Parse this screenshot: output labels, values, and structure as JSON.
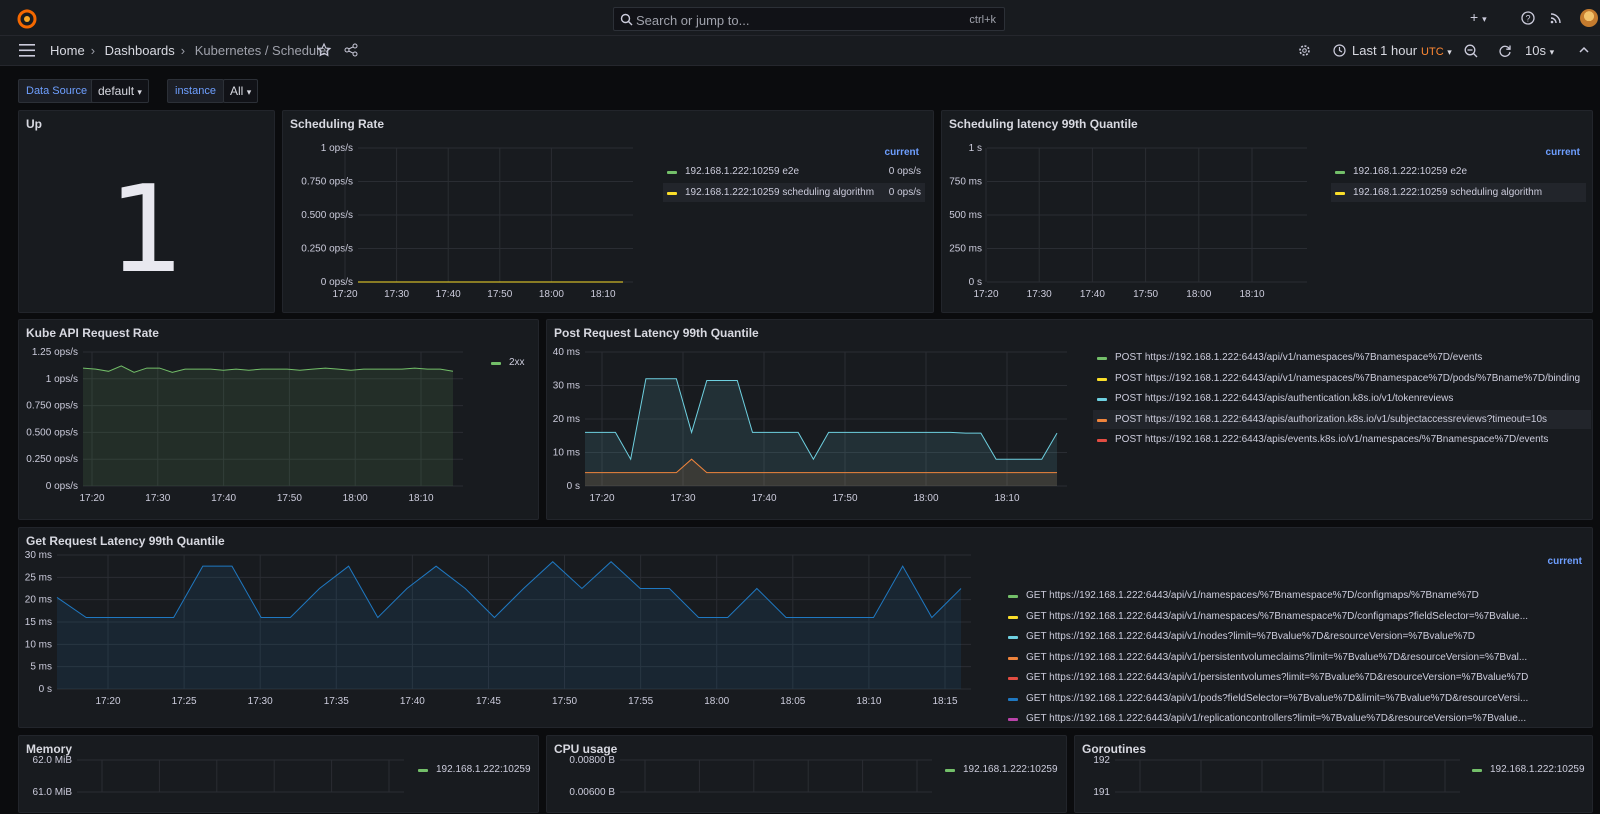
{
  "topbar": {
    "search_placeholder": "Search or jump to...",
    "search_shortcut": "ctrl+k",
    "add_label": "+",
    "icons": [
      "grafana-logo",
      "search-icon",
      "plus-icon",
      "help-icon",
      "news-icon",
      "avatar"
    ]
  },
  "nav": {
    "breadcrumbs": [
      "Home",
      "Dashboards",
      "Kubernetes / Scheduler"
    ],
    "time_range": "Last 1 hour",
    "timezone": "UTC",
    "refresh_interval": "10s"
  },
  "variables": [
    {
      "label": "Data Source",
      "value": "default"
    },
    {
      "label": "instance",
      "value": "All"
    }
  ],
  "colors": {
    "green": "#73bf69",
    "yellow": "#fade2a",
    "cyan": "#6ed0e0",
    "orange": "#ef843c",
    "red": "#e24d42",
    "blue": "#1f78c1",
    "purple": "#ba43a9",
    "accent": "#6e9fff",
    "utc": "#ff8833"
  },
  "panels": {
    "up": {
      "title": "Up",
      "value": "1"
    },
    "scheduling_rate": {
      "title": "Scheduling Rate",
      "legend_header": "current",
      "legend": [
        {
          "name": "192.168.1.222:10259 e2e",
          "value": "0 ops/s",
          "color": "#73bf69"
        },
        {
          "name": "192.168.1.222:10259 scheduling algorithm",
          "value": "0 ops/s",
          "color": "#fade2a"
        }
      ]
    },
    "scheduling_latency": {
      "title": "Scheduling latency 99th Quantile",
      "legend_header": "current",
      "legend": [
        {
          "name": "192.168.1.222:10259 e2e",
          "color": "#73bf69"
        },
        {
          "name": "192.168.1.222:10259 scheduling algorithm",
          "color": "#fade2a"
        }
      ]
    },
    "kube_api_rate": {
      "title": "Kube API Request Rate",
      "legend": [
        {
          "name": "2xx",
          "color": "#73bf69"
        }
      ]
    },
    "post_latency": {
      "title": "Post Request Latency 99th Quantile",
      "legend": [
        {
          "name": "POST https://192.168.1.222:6443/api/v1/namespaces/%7Bnamespace%7D/events",
          "color": "#73bf69"
        },
        {
          "name": "POST https://192.168.1.222:6443/api/v1/namespaces/%7Bnamespace%7D/pods/%7Bname%7D/binding",
          "color": "#fade2a"
        },
        {
          "name": "POST https://192.168.1.222:6443/apis/authentication.k8s.io/v1/tokenreviews",
          "color": "#6ed0e0"
        },
        {
          "name": "POST https://192.168.1.222:6443/apis/authorization.k8s.io/v1/subjectaccessreviews?timeout=10s",
          "color": "#ef843c"
        },
        {
          "name": "POST https://192.168.1.222:6443/apis/events.k8s.io/v1/namespaces/%7Bnamespace%7D/events",
          "color": "#e24d42"
        }
      ]
    },
    "get_latency": {
      "title": "Get Request Latency 99th Quantile",
      "legend_header": "current",
      "legend": [
        {
          "name": "GET https://192.168.1.222:6443/api/v1/namespaces/%7Bnamespace%7D/configmaps/%7Bname%7D",
          "color": "#73bf69"
        },
        {
          "name": "GET https://192.168.1.222:6443/api/v1/namespaces/%7Bnamespace%7D/configmaps?fieldSelector=%7Bvalue...",
          "color": "#fade2a"
        },
        {
          "name": "GET https://192.168.1.222:6443/api/v1/nodes?limit=%7Bvalue%7D&resourceVersion=%7Bvalue%7D",
          "color": "#6ed0e0"
        },
        {
          "name": "GET https://192.168.1.222:6443/api/v1/persistentvolumeclaims?limit=%7Bvalue%7D&resourceVersion=%7Bval...",
          "color": "#ef843c"
        },
        {
          "name": "GET https://192.168.1.222:6443/api/v1/persistentvolumes?limit=%7Bvalue%7D&resourceVersion=%7Bvalue%7D",
          "color": "#e24d42"
        },
        {
          "name": "GET https://192.168.1.222:6443/api/v1/pods?fieldSelector=%7Bvalue%7D&limit=%7Bvalue%7D&resourceVersi...",
          "color": "#1f78c1"
        },
        {
          "name": "GET https://192.168.1.222:6443/api/v1/replicationcontrollers?limit=%7Bvalue%7D&resourceVersion=%7Bvalue...",
          "color": "#ba43a9"
        }
      ]
    },
    "memory": {
      "title": "Memory",
      "legend": [
        {
          "name": "192.168.1.222:10259",
          "color": "#73bf69"
        }
      ]
    },
    "cpu": {
      "title": "CPU usage",
      "legend": [
        {
          "name": "192.168.1.222:10259",
          "color": "#73bf69"
        }
      ]
    },
    "goroutines": {
      "title": "Goroutines",
      "legend": [
        {
          "name": "192.168.1.222:10259",
          "color": "#73bf69"
        }
      ]
    }
  },
  "chart_data": [
    {
      "id": "scheduling_rate",
      "type": "line",
      "y_ticks": [
        "0 ops/s",
        "0.250 ops/s",
        "0.500 ops/s",
        "0.750 ops/s",
        "1 ops/s"
      ],
      "x_ticks": [
        "17:20",
        "17:30",
        "17:40",
        "17:50",
        "18:00",
        "18:10"
      ],
      "ylim": [
        0,
        1
      ],
      "series": [
        {
          "name": "192.168.1.222:10259 e2e",
          "color": "#73bf69",
          "values": [
            0,
            0
          ]
        },
        {
          "name": "192.168.1.222:10259 scheduling algorithm",
          "color": "#fade2a",
          "values": [
            0,
            0
          ]
        }
      ]
    },
    {
      "id": "scheduling_latency",
      "type": "line",
      "y_ticks": [
        "0 s",
        "250 ms",
        "500 ms",
        "750 ms",
        "1 s"
      ],
      "x_ticks": [
        "17:20",
        "17:30",
        "17:40",
        "17:50",
        "18:00",
        "18:10"
      ],
      "ylim": [
        0,
        1
      ],
      "series": []
    },
    {
      "id": "kube_api_rate",
      "type": "area",
      "y_ticks": [
        "0 ops/s",
        "0.250 ops/s",
        "0.500 ops/s",
        "0.750 ops/s",
        "1 ops/s",
        "1.25 ops/s"
      ],
      "x_ticks": [
        "17:20",
        "17:30",
        "17:40",
        "17:50",
        "18:00",
        "18:10"
      ],
      "ylim": [
        0,
        1.25
      ],
      "series": [
        {
          "name": "2xx",
          "color": "#73bf69",
          "values": [
            1.1,
            1.09,
            1.07,
            1.12,
            1.06,
            1.1,
            1.1,
            1.06,
            1.09,
            1.09,
            1.09,
            1.08,
            1.09,
            1.08,
            1.09,
            1.09,
            1.09,
            1.08,
            1.09,
            1.1,
            1.09,
            1.08,
            1.09,
            1.09,
            1.09,
            1.09,
            1.1,
            1.09,
            1.09,
            1.07
          ]
        }
      ]
    },
    {
      "id": "post_latency",
      "type": "area",
      "y_ticks": [
        "0 s",
        "10 ms",
        "20 ms",
        "30 ms",
        "40 ms"
      ],
      "x_ticks": [
        "17:20",
        "17:30",
        "17:40",
        "17:50",
        "18:00",
        "18:10"
      ],
      "ylim": [
        0,
        40
      ],
      "series": [
        {
          "name": "POST https://192.168.1.222:6443/apis/authentication.k8s.io/v1/tokenreviews",
          "color": "#6ed0e0",
          "values": [
            16,
            16,
            16,
            8,
            32,
            32,
            32,
            16,
            31.5,
            31.5,
            31.5,
            16,
            16,
            16,
            16,
            8,
            16,
            16,
            16,
            16,
            16,
            16,
            16,
            16,
            16,
            15.8,
            15.8,
            8,
            8,
            8,
            8,
            15.8
          ]
        },
        {
          "name": "POST https://192.168.1.222:6443/apis/authorization.k8s.io/v1/subjectaccessreviews?timeout=10s",
          "color": "#ef843c",
          "values": [
            4,
            4,
            4,
            4,
            4,
            4,
            4,
            8,
            4,
            4,
            4,
            4,
            4,
            4,
            4,
            4,
            4,
            4,
            4,
            4,
            4,
            4,
            4,
            4,
            4,
            4,
            4,
            4,
            4,
            4,
            4,
            4
          ]
        }
      ]
    },
    {
      "id": "get_latency",
      "type": "area",
      "y_ticks": [
        "0 s",
        "5 ms",
        "10 ms",
        "15 ms",
        "20 ms",
        "25 ms",
        "30 ms"
      ],
      "x_ticks": [
        "17:20",
        "17:25",
        "17:30",
        "17:35",
        "17:40",
        "17:45",
        "17:50",
        "17:55",
        "18:00",
        "18:05",
        "18:10",
        "18:15"
      ],
      "ylim": [
        0,
        30
      ],
      "series": [
        {
          "name": "GET https://192.168.1.222:6443/api/v1/pods?fieldSelector=%7Bvalue%7D&limit=%7Bvalue%7D&resourceVersi...",
          "color": "#1f78c1",
          "values": [
            20.5,
            16,
            16,
            16,
            16,
            27.5,
            27.5,
            16,
            16,
            22.5,
            27.5,
            16,
            22.5,
            27.5,
            22.5,
            16,
            22.5,
            28.5,
            22.5,
            28.5,
            22.5,
            22.5,
            16,
            16,
            22.5,
            16,
            16,
            16,
            16,
            27.5,
            16,
            22.5
          ]
        }
      ]
    },
    {
      "id": "memory",
      "type": "line",
      "y_ticks": [
        "61.0 MiB",
        "62.0 MiB"
      ],
      "series": [
        {
          "name": "192.168.1.222:10259",
          "color": "#73bf69"
        }
      ]
    },
    {
      "id": "cpu",
      "type": "line",
      "y_ticks": [
        "0.00600 B",
        "0.00800 B"
      ],
      "series": [
        {
          "name": "192.168.1.222:10259",
          "color": "#73bf69"
        }
      ]
    },
    {
      "id": "goroutines",
      "type": "line",
      "y_ticks": [
        "191",
        "192"
      ],
      "series": [
        {
          "name": "192.168.1.222:10259",
          "color": "#73bf69"
        }
      ]
    }
  ]
}
